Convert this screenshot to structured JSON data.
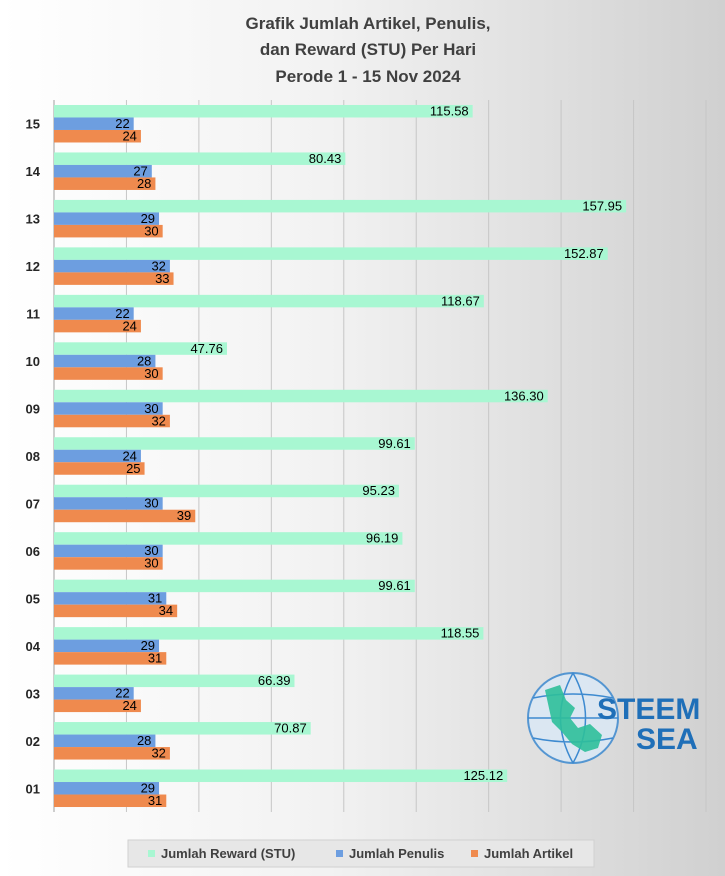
{
  "chart_data": {
    "type": "bar",
    "orientation": "horizontal",
    "title": [
      "Grafik Jumlah Artikel, Penulis,",
      "dan Reward (STU) Per Hari",
      "Perode 1 - 15 Nov 2024"
    ],
    "categories": [
      "01",
      "02",
      "03",
      "04",
      "05",
      "06",
      "07",
      "08",
      "09",
      "10",
      "11",
      "12",
      "13",
      "14",
      "15"
    ],
    "series": [
      {
        "name": "Jumlah Reward (STU)",
        "color": "#a8f7d2",
        "values": [
          125.12,
          70.87,
          66.39,
          118.55,
          99.61,
          96.19,
          95.23,
          99.61,
          136.3,
          47.76,
          118.67,
          152.87,
          157.95,
          80.43,
          115.58
        ],
        "labels": [
          "125.12",
          "70.87",
          "66.39",
          "118.55",
          "99.61",
          "96.19",
          "95.23",
          "99.61",
          "136.30",
          "47.76",
          "118.67",
          "152.87",
          "157.95",
          "80.43",
          "115.58"
        ]
      },
      {
        "name": "Jumlah Penulis",
        "color": "#6d9ee0",
        "values": [
          29,
          28,
          22,
          29,
          31,
          30,
          30,
          24,
          30,
          28,
          22,
          32,
          29,
          27,
          22
        ],
        "labels": [
          "29",
          "28",
          "22",
          "29",
          "31",
          "30",
          "30",
          "24",
          "30",
          "28",
          "22",
          "32",
          "29",
          "27",
          "22"
        ]
      },
      {
        "name": "Jumlah Artikel",
        "color": "#ef8a4e",
        "values": [
          31,
          32,
          24,
          31,
          34,
          30,
          39,
          25,
          32,
          30,
          24,
          33,
          30,
          28,
          24
        ],
        "labels": [
          "31",
          "32",
          "24",
          "31",
          "34",
          "30",
          "39",
          "25",
          "32",
          "30",
          "24",
          "33",
          "30",
          "28",
          "24"
        ]
      }
    ],
    "xlim": [
      0,
      180
    ],
    "grid": true,
    "legend": "bottom"
  },
  "logo": {
    "line1": "STEEM",
    "line2": "SEA"
  }
}
